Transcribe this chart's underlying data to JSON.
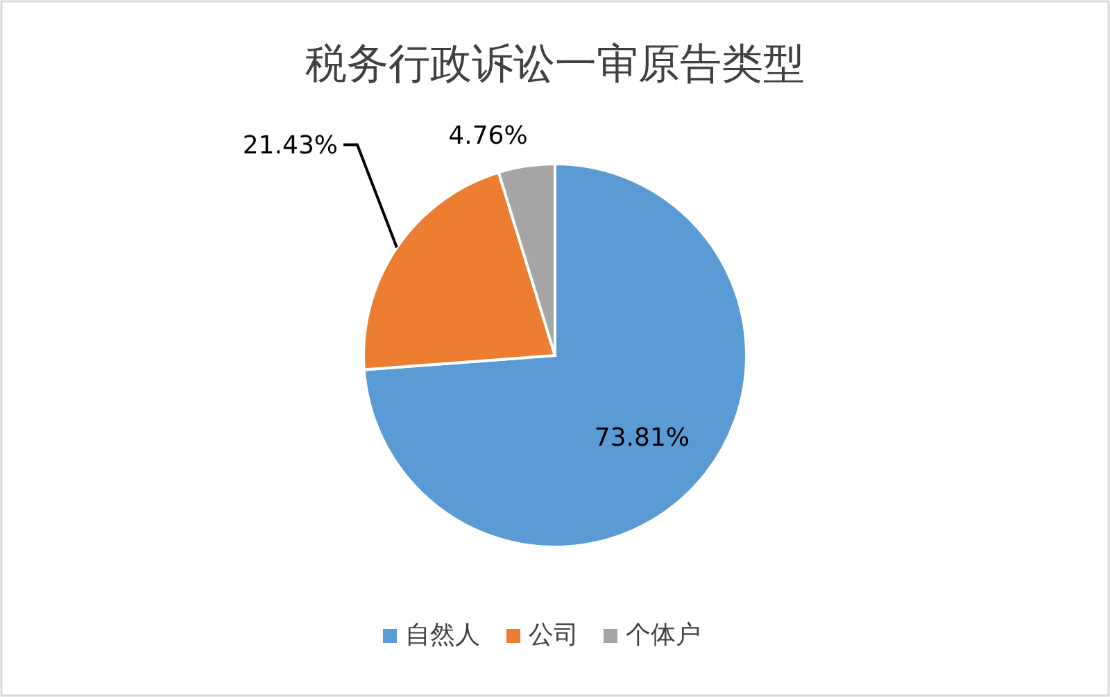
{
  "chart_data": {
    "type": "pie",
    "title": "税务行政诉讼一审原告类型",
    "categories": [
      "自然人",
      "公司",
      "个体户"
    ],
    "values": [
      73.81,
      21.43,
      4.76
    ],
    "colors": [
      "#5b9bd5",
      "#ed7d31",
      "#a5a5a5"
    ],
    "value_labels": [
      "73.81%",
      "21.43%",
      "4.76%"
    ],
    "legend": "bottom"
  }
}
